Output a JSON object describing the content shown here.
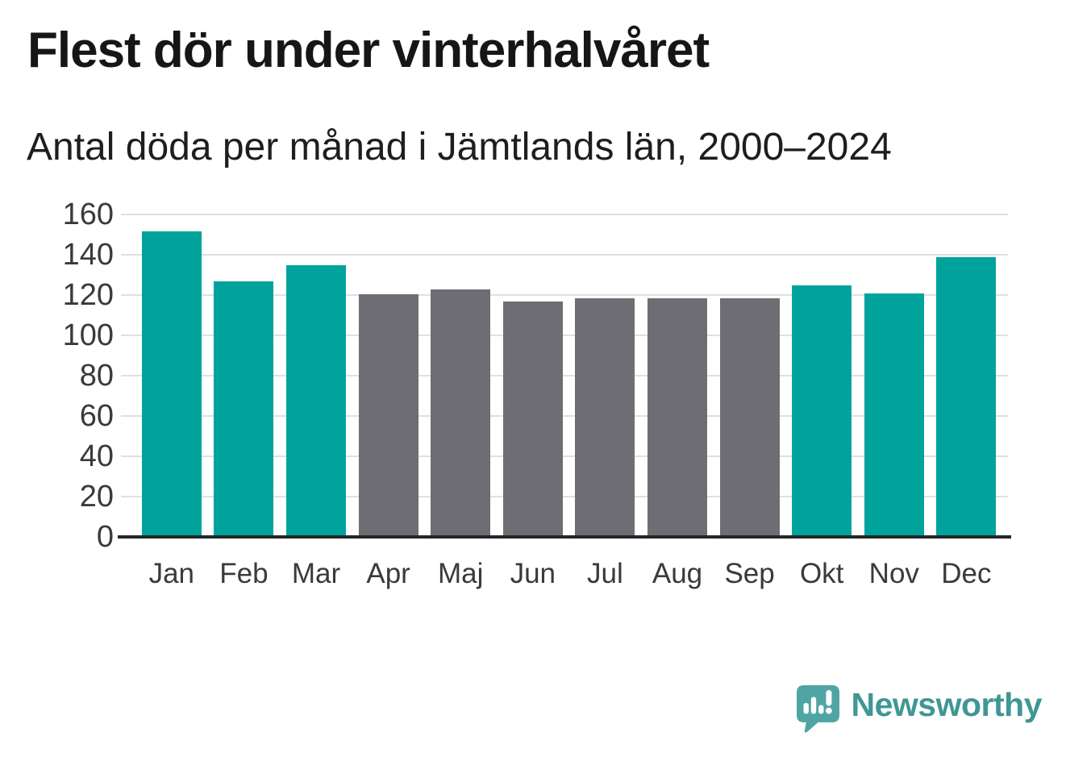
{
  "header": {
    "title": "Flest dör under vinterhalvåret",
    "subtitle": "Antal döda per månad i Jämtlands län, 2000–2024"
  },
  "chart_data": {
    "type": "bar",
    "title": "Flest dör under vinterhalvåret",
    "subtitle": "Antal döda per månad i Jämtlands län, 2000–2024",
    "categories": [
      "Jan",
      "Feb",
      "Mar",
      "Apr",
      "Maj",
      "Jun",
      "Jul",
      "Aug",
      "Sep",
      "Okt",
      "Nov",
      "Dec"
    ],
    "values": [
      151.5,
      127,
      135,
      120.5,
      123,
      117,
      118.5,
      118.5,
      118.5,
      125,
      121,
      139
    ],
    "bar_groups": [
      "winter",
      "winter",
      "winter",
      "summer",
      "summer",
      "summer",
      "summer",
      "summer",
      "summer",
      "winter",
      "winter",
      "winter"
    ],
    "group_colors": {
      "winter": "#00a39c",
      "summer": "#6e6d73"
    },
    "ylim": [
      0,
      160
    ],
    "yticks": [
      0,
      20,
      40,
      60,
      80,
      100,
      120,
      140,
      160
    ],
    "xlabel": "",
    "ylabel": "",
    "grid": true,
    "legend_position": "none"
  },
  "branding": {
    "text": "Newsworthy",
    "icon": "newsworthy-logo-icon",
    "icon_color": "#4fa5a3",
    "icon_glyph_color": "#ffffff",
    "text_color": "#3f9794"
  },
  "style": {
    "background": "#ffffff",
    "title_color": "#161616",
    "subtitle_color": "#1e1e1e",
    "tick_label_color": "#3a3a3a",
    "gridline_color": "#e0e0e0",
    "axis_line_color": "#262626"
  }
}
